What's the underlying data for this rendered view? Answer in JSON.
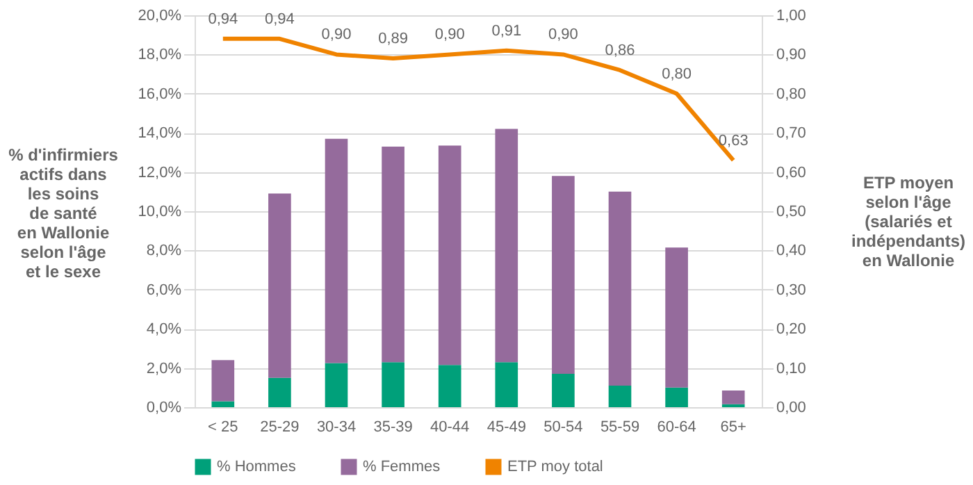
{
  "chart_data": {
    "type": "bar",
    "stacked": true,
    "ylabel": "% d'infirmiers\nactifs dans\nles soins\nde santé\nen Wallonie\nselon l'âge\net le sexe",
    "y2label": "ETP moyen\nselon l'âge\n(salariés et\nindépendants)\nen Wallonie",
    "categories": [
      "< 25",
      "25-29",
      "30-34",
      "35-39",
      "40-44",
      "45-49",
      "50-54",
      "55-59",
      "60-64",
      "65+"
    ],
    "series": [
      {
        "name": "% Hommes",
        "color": "#00a07a",
        "values": [
          0.3,
          1.5,
          2.25,
          2.3,
          2.15,
          2.3,
          1.7,
          1.1,
          1.0,
          0.15
        ]
      },
      {
        "name": "% Femmes",
        "color": "#956b9c",
        "values": [
          2.1,
          9.4,
          11.45,
          11.0,
          11.2,
          11.9,
          10.1,
          9.9,
          7.15,
          0.7
        ]
      },
      {
        "name": "ETP moy total",
        "type": "line",
        "axis": "y2",
        "color": "#f08300",
        "values": [
          0.94,
          0.94,
          0.9,
          0.89,
          0.9,
          0.91,
          0.9,
          0.86,
          0.8,
          0.63
        ],
        "value_labels": [
          "0,94",
          "0,94",
          "0,90",
          "0,89",
          "0,90",
          "0,91",
          "0,90",
          "0,86",
          "0,80",
          "0,63"
        ]
      }
    ],
    "ylim": [
      0,
      20
    ],
    "yticks": [
      {
        "value": 0,
        "label": "0,0%"
      },
      {
        "value": 2,
        "label": "2,0%"
      },
      {
        "value": 4,
        "label": "4,0%"
      },
      {
        "value": 6,
        "label": "6,0%"
      },
      {
        "value": 8,
        "label": "8,0%"
      },
      {
        "value": 10,
        "label": "10,0%"
      },
      {
        "value": 12,
        "label": "12,0%"
      },
      {
        "value": 14,
        "label": "14,0%"
      },
      {
        "value": 16,
        "label": "16,0%"
      },
      {
        "value": 18,
        "label": "18,0%"
      },
      {
        "value": 20,
        "label": "20,0%"
      }
    ],
    "y2lim": [
      0,
      1
    ],
    "y2ticks": [
      {
        "value": 0,
        "label": "0,00"
      },
      {
        "value": 0.1,
        "label": "0,10"
      },
      {
        "value": 0.2,
        "label": "0,20"
      },
      {
        "value": 0.3,
        "label": "0,30"
      },
      {
        "value": 0.4,
        "label": "0,40"
      },
      {
        "value": 0.5,
        "label": "0,50"
      },
      {
        "value": 0.6,
        "label": "0,60"
      },
      {
        "value": 0.7,
        "label": "0,70"
      },
      {
        "value": 0.8,
        "label": "0,80"
      },
      {
        "value": 0.9,
        "label": "0,90"
      },
      {
        "value": 1,
        "label": "1,00"
      }
    ],
    "grid": "y",
    "legend": "bottom"
  }
}
